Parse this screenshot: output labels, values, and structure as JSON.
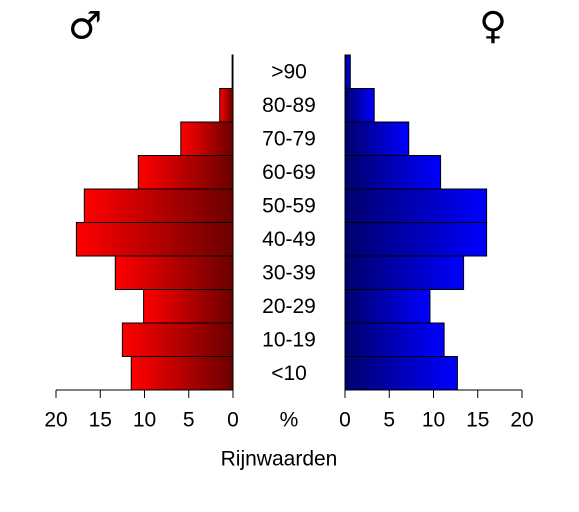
{
  "chart_data": {
    "type": "pyramid",
    "title": "Rijnwaarden",
    "axis_label": "%",
    "categories": [
      "<10",
      "10-19",
      "20-29",
      "30-39",
      "40-49",
      "50-59",
      "60-69",
      "70-79",
      "80-89",
      ">90"
    ],
    "series": [
      {
        "name": "♂",
        "color": "#ff0000",
        "values": [
          11.5,
          12.5,
          10.1,
          13.3,
          17.7,
          16.8,
          10.7,
          5.9,
          1.5,
          0.1
        ]
      },
      {
        "name": "♀",
        "color": "#0000ff",
        "values": [
          12.7,
          11.2,
          9.6,
          13.4,
          16.0,
          16.0,
          10.8,
          7.2,
          3.3,
          0.6
        ]
      }
    ],
    "xlim": [
      0,
      20
    ],
    "xticks": [
      0,
      5,
      10,
      15,
      20
    ]
  }
}
